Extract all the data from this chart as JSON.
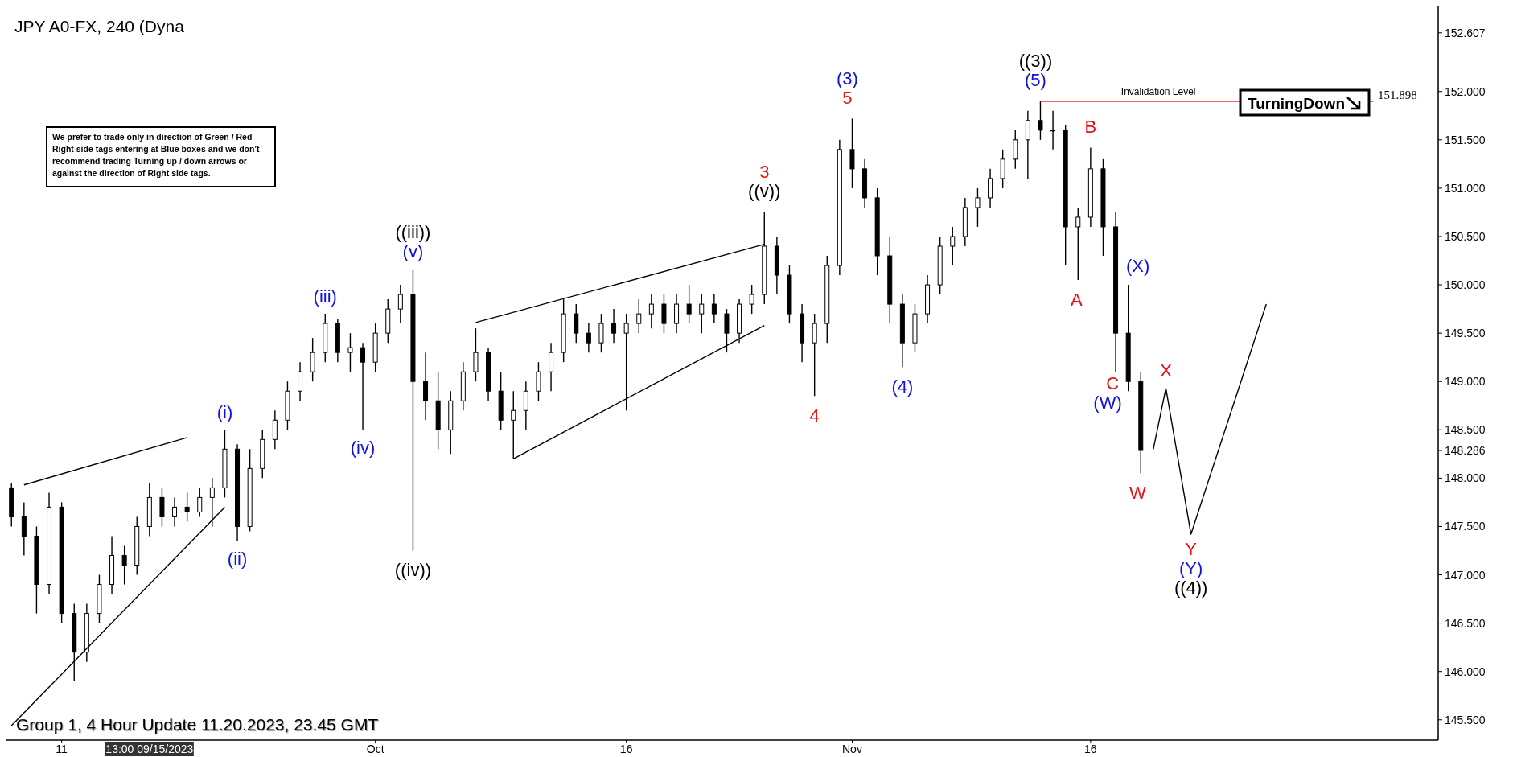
{
  "chart_data": {
    "type": "candlestick",
    "title": "JPY A0-FX, 240 (Dyna",
    "categories": [
      null,
      null,
      null,
      null,
      "11",
      null,
      null,
      null,
      null,
      null,
      null,
      null,
      null,
      null,
      null,
      null,
      null,
      null,
      null,
      null,
      null,
      null,
      null,
      null,
      null,
      null,
      null,
      null,
      null,
      "Oct",
      null,
      null,
      null,
      null,
      null,
      null,
      null,
      null,
      null,
      null,
      null,
      null,
      null,
      null,
      null,
      null,
      null,
      null,
      null,
      "16",
      null,
      null,
      null,
      null,
      null,
      null,
      null,
      null,
      null,
      null,
      null,
      null,
      null,
      null,
      null,
      null,
      null,
      "Nov",
      null,
      null,
      null,
      null,
      null,
      null,
      null,
      null,
      null,
      null,
      null,
      null,
      null,
      null,
      null,
      null,
      null,
      null,
      "16",
      null,
      null,
      null,
      null,
      null,
      null,
      null,
      null,
      null,
      null,
      null,
      null,
      null,
      null,
      null,
      null,
      null,
      null,
      null,
      null,
      null,
      null,
      null,
      null,
      null,
      null,
      null
    ],
    "ohlc": [
      [
        147.9,
        147.95,
        147.5,
        147.6
      ],
      [
        147.6,
        147.75,
        147.2,
        147.4
      ],
      [
        147.4,
        147.5,
        146.6,
        146.9
      ],
      [
        146.9,
        147.85,
        146.8,
        147.7
      ],
      [
        147.7,
        147.75,
        146.5,
        146.6
      ],
      [
        146.6,
        146.7,
        145.9,
        146.2
      ],
      [
        146.2,
        146.7,
        146.1,
        146.6
      ],
      [
        146.6,
        147.0,
        146.5,
        146.9
      ],
      [
        146.9,
        147.4,
        146.8,
        147.2
      ],
      [
        147.2,
        147.3,
        146.9,
        147.1
      ],
      [
        147.1,
        147.6,
        147.0,
        147.5
      ],
      [
        147.5,
        147.95,
        147.4,
        147.8
      ],
      [
        147.8,
        147.9,
        147.5,
        147.6
      ],
      [
        147.6,
        147.8,
        147.5,
        147.7
      ],
      [
        147.7,
        147.85,
        147.55,
        147.65
      ],
      [
        147.65,
        147.9,
        147.6,
        147.8
      ],
      [
        147.8,
        148.0,
        147.5,
        147.9
      ],
      [
        147.9,
        148.5,
        147.8,
        148.3
      ],
      [
        148.3,
        148.35,
        147.35,
        147.5
      ],
      [
        147.5,
        148.3,
        147.45,
        148.1
      ],
      [
        148.1,
        148.5,
        148.0,
        148.4
      ],
      [
        148.4,
        148.7,
        148.3,
        148.6
      ],
      [
        148.6,
        149.0,
        148.5,
        148.9
      ],
      [
        148.9,
        149.2,
        148.8,
        149.1
      ],
      [
        149.1,
        149.45,
        149.0,
        149.3
      ],
      [
        149.3,
        149.7,
        149.2,
        149.6
      ],
      [
        149.6,
        149.65,
        149.2,
        149.3
      ],
      [
        149.3,
        149.5,
        149.1,
        149.35
      ],
      [
        149.35,
        149.4,
        148.5,
        149.2
      ],
      [
        149.2,
        149.6,
        149.1,
        149.5
      ],
      [
        149.5,
        149.85,
        149.4,
        149.75
      ],
      [
        149.75,
        150.0,
        149.6,
        149.9
      ],
      [
        149.9,
        150.15,
        147.25,
        149.0
      ],
      [
        149.0,
        149.3,
        148.6,
        148.8
      ],
      [
        148.8,
        149.1,
        148.3,
        148.5
      ],
      [
        148.5,
        148.9,
        148.25,
        148.8
      ],
      [
        148.8,
        149.2,
        148.7,
        149.1
      ],
      [
        149.1,
        149.55,
        149.0,
        149.3
      ],
      [
        149.3,
        149.35,
        148.8,
        148.9
      ],
      [
        148.9,
        149.1,
        148.5,
        148.6
      ],
      [
        148.6,
        148.9,
        148.2,
        148.7
      ],
      [
        148.7,
        149.0,
        148.5,
        148.9
      ],
      [
        148.9,
        149.2,
        148.8,
        149.1
      ],
      [
        149.1,
        149.4,
        148.9,
        149.3
      ],
      [
        149.3,
        149.85,
        149.2,
        149.7
      ],
      [
        149.7,
        149.8,
        149.4,
        149.5
      ],
      [
        149.5,
        149.6,
        149.3,
        149.4
      ],
      [
        149.4,
        149.7,
        149.3,
        149.6
      ],
      [
        149.6,
        149.75,
        149.4,
        149.5
      ],
      [
        149.5,
        149.7,
        148.7,
        149.6
      ],
      [
        149.6,
        149.85,
        149.5,
        149.7
      ],
      [
        149.7,
        149.9,
        149.55,
        149.8
      ],
      [
        149.8,
        149.9,
        149.5,
        149.6
      ],
      [
        149.6,
        149.9,
        149.5,
        149.8
      ],
      [
        149.8,
        150.0,
        149.6,
        149.7
      ],
      [
        149.7,
        149.9,
        149.5,
        149.8
      ],
      [
        149.8,
        149.9,
        149.6,
        149.7
      ],
      [
        149.7,
        149.75,
        149.3,
        149.5
      ],
      [
        149.5,
        149.85,
        149.4,
        149.8
      ],
      [
        149.8,
        150.0,
        149.7,
        149.9
      ],
      [
        149.9,
        150.75,
        149.8,
        150.4
      ],
      [
        150.4,
        150.5,
        149.9,
        150.1
      ],
      [
        150.1,
        150.2,
        149.6,
        149.7
      ],
      [
        149.7,
        149.8,
        149.2,
        149.4
      ],
      [
        149.4,
        149.7,
        148.85,
        149.6
      ],
      [
        149.6,
        150.3,
        149.4,
        150.2
      ],
      [
        150.2,
        151.5,
        150.1,
        151.4
      ],
      [
        151.4,
        151.72,
        151.0,
        151.2
      ],
      [
        151.2,
        151.3,
        150.8,
        150.9
      ],
      [
        150.9,
        151.0,
        150.1,
        150.3
      ],
      [
        150.3,
        150.5,
        149.6,
        149.8
      ],
      [
        149.8,
        149.9,
        149.15,
        149.4
      ],
      [
        149.4,
        149.8,
        149.3,
        149.7
      ],
      [
        149.7,
        150.1,
        149.6,
        150.0
      ],
      [
        150.0,
        150.5,
        149.9,
        150.4
      ],
      [
        150.4,
        150.6,
        150.2,
        150.5
      ],
      [
        150.5,
        150.9,
        150.4,
        150.8
      ],
      [
        150.8,
        151.0,
        150.6,
        150.9
      ],
      [
        150.9,
        151.2,
        150.8,
        151.1
      ],
      [
        151.1,
        151.4,
        151.0,
        151.3
      ],
      [
        151.3,
        151.6,
        151.2,
        151.5
      ],
      [
        151.5,
        151.8,
        151.1,
        151.7
      ],
      [
        151.7,
        151.898,
        151.5,
        151.6
      ],
      [
        151.6,
        151.8,
        151.4,
        151.6
      ],
      [
        151.6,
        151.65,
        150.2,
        150.6
      ],
      [
        150.6,
        150.8,
        150.05,
        150.7
      ],
      [
        150.7,
        151.42,
        150.6,
        151.2
      ],
      [
        151.2,
        151.3,
        150.3,
        150.6
      ],
      [
        150.6,
        150.75,
        149.1,
        149.5
      ],
      [
        149.5,
        150.0,
        148.9,
        149.0
      ],
      [
        149.0,
        149.1,
        148.05,
        148.286
      ],
      null,
      null,
      null,
      null,
      null,
      null,
      null,
      null,
      null,
      null,
      null,
      null,
      null,
      null,
      null,
      null,
      null,
      null,
      null,
      null,
      null,
      null,
      null
    ],
    "series": [
      {
        "type": "line",
        "color": "#000000",
        "values": [
          null,
          147.93,
          null,
          null,
          null,
          null,
          null,
          null,
          null,
          null,
          null,
          null,
          null,
          null,
          148.42,
          null,
          null,
          null,
          null,
          null,
          null,
          null,
          null,
          null,
          null,
          null,
          null,
          null,
          null,
          null,
          null,
          null,
          null,
          null,
          null,
          null,
          null,
          null,
          null,
          null,
          null,
          null,
          null,
          null,
          null,
          null,
          null,
          null,
          null,
          null,
          null,
          null,
          null,
          null,
          null,
          null,
          null,
          null,
          null,
          null,
          null,
          null,
          null,
          null,
          null,
          null,
          null,
          null,
          null,
          null,
          null,
          null,
          null,
          null,
          null,
          null,
          null,
          null,
          null,
          null,
          null,
          null,
          null,
          null,
          null,
          null,
          null,
          null,
          null,
          null,
          null,
          null,
          null,
          null,
          null,
          null,
          null,
          null,
          null,
          null,
          null,
          null,
          null,
          null,
          null,
          null,
          null,
          null,
          null,
          null,
          null,
          null,
          null,
          null
        ]
      },
      {
        "type": "line",
        "color": "#000000",
        "values": [
          145.44,
          null,
          null,
          null,
          null,
          null,
          null,
          null,
          null,
          null,
          null,
          null,
          null,
          null,
          null,
          null,
          null,
          147.7,
          null,
          null,
          null,
          null,
          null,
          null,
          null,
          null,
          null,
          null,
          null,
          null,
          null,
          null,
          null,
          null,
          null,
          null,
          null,
          null,
          null,
          null,
          null,
          null,
          null,
          null,
          null,
          null,
          null,
          null,
          null,
          null,
          null,
          null,
          null,
          null,
          null,
          null,
          null,
          null,
          null,
          null,
          null,
          null,
          null,
          null,
          null,
          null,
          null,
          null,
          null,
          null,
          null,
          null,
          null,
          null,
          null,
          null,
          null,
          null,
          null,
          null,
          null,
          null,
          null,
          null,
          null,
          null,
          null,
          null,
          null,
          null,
          null,
          null,
          null,
          null,
          null,
          null,
          null,
          null,
          null,
          null,
          null,
          null,
          null,
          null,
          null,
          null,
          null,
          null,
          null,
          null,
          null,
          null,
          null,
          null
        ]
      },
      {
        "type": "line",
        "color": "#000000",
        "values": [
          null,
          null,
          null,
          null,
          null,
          null,
          null,
          null,
          null,
          null,
          null,
          null,
          null,
          null,
          null,
          null,
          null,
          null,
          null,
          null,
          null,
          null,
          null,
          null,
          null,
          null,
          null,
          null,
          null,
          null,
          null,
          null,
          null,
          null,
          null,
          null,
          null,
          149.61,
          null,
          null,
          null,
          null,
          null,
          null,
          null,
          null,
          null,
          null,
          null,
          null,
          null,
          null,
          null,
          null,
          null,
          null,
          null,
          null,
          null,
          null,
          150.42,
          null,
          null,
          null,
          null,
          null,
          null,
          null,
          null,
          null,
          null,
          null,
          null,
          null,
          null,
          null,
          null,
          null,
          null,
          null,
          null,
          null,
          null,
          null,
          null,
          null,
          null,
          null,
          null,
          null,
          null,
          null,
          null,
          null,
          null,
          null,
          null,
          null,
          null,
          null,
          null,
          null,
          null,
          null,
          null,
          null,
          null,
          null,
          null,
          null,
          null,
          null,
          null,
          null
        ]
      },
      {
        "type": "line",
        "color": "#000000",
        "values": [
          null,
          null,
          null,
          null,
          null,
          null,
          null,
          null,
          null,
          null,
          null,
          null,
          null,
          null,
          null,
          null,
          null,
          null,
          null,
          null,
          null,
          null,
          null,
          null,
          null,
          null,
          null,
          null,
          null,
          null,
          null,
          null,
          null,
          null,
          null,
          null,
          null,
          null,
          null,
          null,
          148.2,
          null,
          null,
          null,
          null,
          null,
          null,
          null,
          null,
          null,
          null,
          null,
          null,
          null,
          null,
          null,
          null,
          null,
          null,
          null,
          149.58,
          null,
          null,
          null,
          null,
          null,
          null,
          null,
          null,
          null,
          null,
          null,
          null,
          null,
          null,
          null,
          null,
          null,
          null,
          null,
          null,
          null,
          null,
          null,
          null,
          null,
          null,
          null,
          null,
          null,
          null,
          null,
          null,
          null,
          null,
          null,
          null,
          null,
          null,
          null,
          null,
          null,
          null,
          null,
          null,
          null,
          null,
          null,
          null,
          null,
          null,
          null,
          null,
          null
        ]
      },
      {
        "type": "line",
        "color": "#000000",
        "values": [
          null,
          null,
          null,
          null,
          null,
          null,
          null,
          null,
          null,
          null,
          null,
          null,
          null,
          null,
          null,
          null,
          null,
          null,
          null,
          null,
          null,
          null,
          null,
          null,
          null,
          null,
          null,
          null,
          null,
          null,
          null,
          null,
          null,
          null,
          null,
          null,
          null,
          null,
          null,
          null,
          null,
          null,
          null,
          null,
          null,
          null,
          null,
          null,
          null,
          null,
          null,
          null,
          null,
          null,
          null,
          null,
          null,
          null,
          null,
          null,
          null,
          null,
          null,
          null,
          null,
          null,
          null,
          null,
          null,
          null,
          null,
          null,
          null,
          null,
          null,
          null,
          null,
          null,
          null,
          null,
          null,
          null,
          null,
          null,
          null,
          null,
          null,
          null,
          null,
          null,
          null,
          148.3,
          148.93,
          null,
          147.42,
          null,
          null,
          null,
          null,
          null,
          149.8,
          null,
          null,
          null,
          null,
          null,
          null,
          null,
          null,
          null,
          null,
          null,
          null,
          null
        ]
      }
    ],
    "ylim": [
      145.29,
      152.88
    ],
    "yticks": [
      {
        "value": 145.5,
        "label": "145.500"
      },
      {
        "value": 146,
        "label": "146.000"
      },
      {
        "value": 146.5,
        "label": "146.500"
      },
      {
        "value": 147,
        "label": "147.000"
      },
      {
        "value": 147.5,
        "label": "147.500"
      },
      {
        "value": 148,
        "label": "148.000"
      },
      {
        "value": 148.286,
        "label": "148.286"
      },
      {
        "value": 148.5,
        "label": "148.500"
      },
      {
        "value": 149,
        "label": "149.000"
      },
      {
        "value": 149.5,
        "label": "149.500"
      },
      {
        "value": 150,
        "label": "150.000"
      },
      {
        "value": 150.5,
        "label": "150.500"
      },
      {
        "value": 151,
        "label": "151.000"
      },
      {
        "value": 151.5,
        "label": "151.500"
      },
      {
        "value": 152,
        "label": "152.000"
      },
      {
        "value": 152.607,
        "label": "152.607"
      }
    ],
    "ref_lines": [
      {
        "axis": "y",
        "value": 151.898,
        "label": "Invalidation Level",
        "color": "#e83030"
      }
    ],
    "annotations": [
      "((iii))",
      "(v)",
      "(i)",
      "(ii)",
      "(iii)",
      "(iv)",
      "((iv))",
      "3",
      "((v))",
      "5",
      "(3)",
      "4",
      "(4)",
      "((3))",
      "(5)",
      "A",
      "B",
      "(X)",
      "C",
      "(W)",
      "W",
      "X",
      "Y",
      "(Y)",
      "((4))",
      "We prefer to trade only in direction of Green / Red Right side tags entering at Blue boxes and we don't recommend trading Turning up / down arrows or against the direction of Right side tags.",
      "TurningDown",
      "13:00 09/15/2023",
      "Group 1, 4  Hour Update 11.20.2023, 23.45 GMT",
      "151.898"
    ]
  }
}
